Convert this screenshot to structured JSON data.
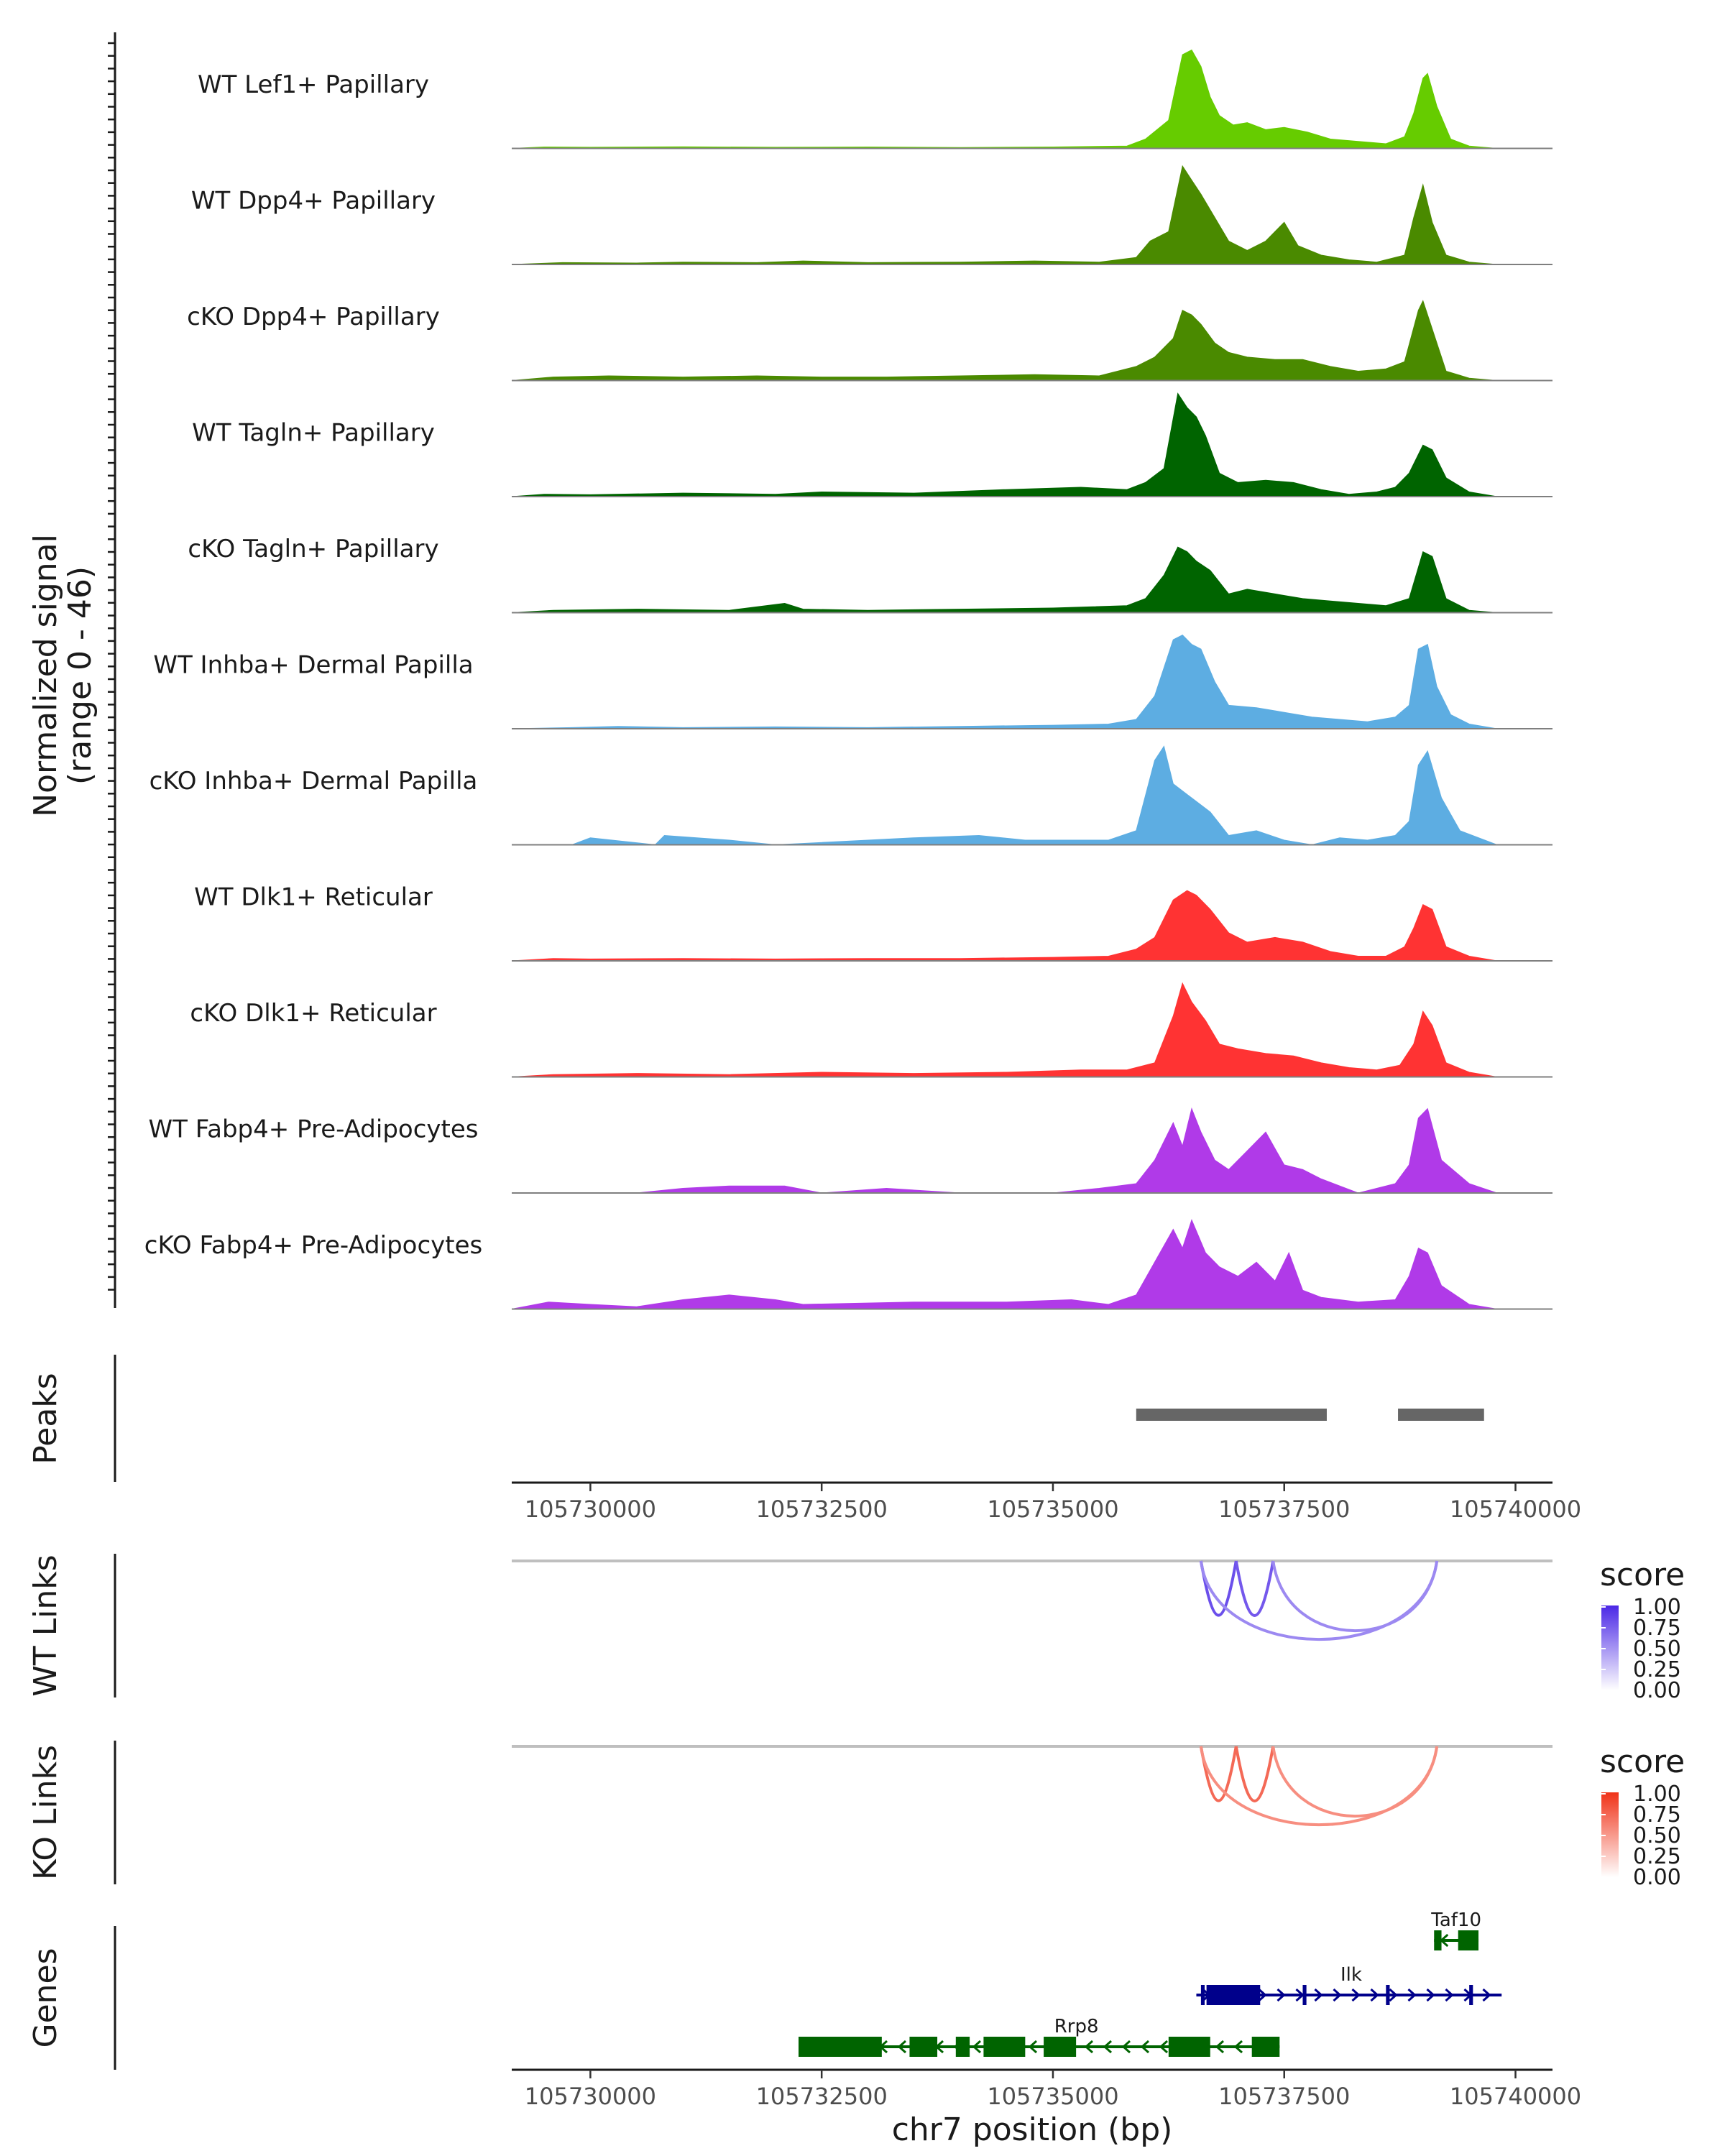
{
  "chart_data": {
    "type": "genome-browser",
    "region": "chr7:105729000-105740000",
    "xlabel": "chr7 position (bp)",
    "xlim": [
      105729150,
      105740400
    ],
    "x_ticks": [
      105730000,
      105732500,
      105735000,
      105737500,
      105740000
    ],
    "x_tick_labels": [
      "105730000",
      "105732500",
      "105735000",
      "105737500",
      "105740000"
    ],
    "coverage": {
      "ylabel": "Normalized signal",
      "ylabel_range": "(range 0 - 46)",
      "ylim": [
        0,
        46
      ],
      "tracks": [
        {
          "label": "WT Lef1+ Papillary",
          "color": "#66cc00",
          "x": [
            105729150,
            105729500,
            105730000,
            105731000,
            105732000,
            105733000,
            105734000,
            105735000,
            105735800,
            105736000,
            105736250,
            105736400,
            105736500,
            105736600,
            105736700,
            105736800,
            105736950,
            105737100,
            105737300,
            105737500,
            105737750,
            105738000,
            105738300,
            105738600,
            105738800,
            105738900,
            105739000,
            105739050,
            105739150,
            105739300,
            105739500,
            105739800
          ],
          "y": [
            0,
            0.6,
            0.5,
            0.7,
            0.5,
            0.6,
            0.4,
            0.6,
            1,
            4,
            12,
            40,
            42,
            35,
            22,
            14,
            10,
            11,
            8,
            9,
            7,
            4,
            3,
            2,
            5,
            15,
            30,
            32,
            18,
            4,
            1,
            0
          ]
        },
        {
          "label": "WT Dpp4+ Papillary",
          "color": "#4a8a00",
          "x": [
            105729150,
            105729700,
            105730500,
            105731000,
            105731800,
            105732300,
            105733000,
            105734000,
            105734800,
            105735500,
            105735900,
            105736050,
            105736250,
            105736400,
            105736500,
            105736600,
            105736750,
            105736900,
            105737100,
            105737300,
            105737500,
            105737650,
            105737900,
            105738200,
            105738500,
            105738800,
            105738900,
            105739000,
            105739100,
            105739250,
            105739500,
            105739800
          ],
          "y": [
            0,
            0.8,
            0.6,
            1,
            0.8,
            1.5,
            0.8,
            1,
            1.5,
            1,
            3,
            10,
            14,
            42,
            36,
            30,
            20,
            10,
            6,
            10,
            18,
            8,
            4,
            2,
            1,
            4,
            20,
            34,
            18,
            4,
            1,
            0
          ]
        },
        {
          "label": "cKO Dpp4+ Papillary",
          "color": "#4a8a00",
          "x": [
            105729150,
            105729600,
            105730200,
            105731000,
            105731800,
            105732500,
            105733200,
            105734000,
            105734800,
            105735500,
            105735900,
            105736100,
            105736300,
            105736400,
            105736500,
            105736600,
            105736750,
            105736900,
            105737100,
            105737400,
            105737700,
            105738000,
            105738300,
            105738600,
            105738800,
            105738950,
            105739000,
            105739100,
            105739250,
            105739500,
            105739800
          ],
          "y": [
            0,
            1.5,
            2,
            1.5,
            2,
            1.5,
            1.5,
            2,
            2.5,
            2,
            6,
            10,
            18,
            30,
            28,
            24,
            16,
            12,
            10,
            9,
            9,
            6,
            4,
            5,
            8,
            30,
            34,
            22,
            4,
            1,
            0
          ]
        },
        {
          "label": "WT Tagln+ Papillary",
          "color": "#006400",
          "x": [
            105729150,
            105729500,
            105730000,
            105731000,
            105732000,
            105732500,
            105733500,
            105734500,
            105735300,
            105735800,
            105736000,
            105736200,
            105736350,
            105736450,
            105736550,
            105736650,
            105736800,
            105737000,
            105737300,
            105737600,
            105737900,
            105738200,
            105738500,
            105738700,
            105738850,
            105739000,
            105739100,
            105739250,
            105739500,
            105739800
          ],
          "y": [
            0,
            1,
            0.8,
            1.5,
            1,
            2,
            1.5,
            3,
            4,
            3,
            6,
            12,
            44,
            38,
            34,
            26,
            10,
            6,
            7,
            6,
            3,
            1,
            2,
            4,
            10,
            22,
            20,
            8,
            2,
            0
          ]
        },
        {
          "label": "cKO Tagln+ Papillary",
          "color": "#006400",
          "x": [
            105729150,
            105729600,
            105730500,
            105731500,
            105732100,
            105732300,
            105733000,
            105734000,
            105735000,
            105735800,
            105736000,
            105736200,
            105736350,
            105736450,
            105736550,
            105736700,
            105736900,
            105737100,
            105737400,
            105737700,
            105738000,
            105738300,
            105738600,
            105738850,
            105739000,
            105739100,
            105739250,
            105739500,
            105739800
          ],
          "y": [
            0,
            1,
            1.5,
            1,
            4,
            1.5,
            1,
            1.5,
            2,
            3,
            6,
            16,
            28,
            26,
            22,
            18,
            8,
            10,
            8,
            6,
            5,
            4,
            3,
            6,
            26,
            24,
            6,
            1,
            0
          ]
        },
        {
          "label": "WT Inhba+ Dermal Papilla",
          "color": "#5dade2",
          "x": [
            105729150,
            105729800,
            105730300,
            105731000,
            105732000,
            105733000,
            105734000,
            105735000,
            105735600,
            105735900,
            105736100,
            105736300,
            105736400,
            105736500,
            105736600,
            105736750,
            105736900,
            105737200,
            105737500,
            105737800,
            105738100,
            105738400,
            105738700,
            105738850,
            105738950,
            105739050,
            105739150,
            105739300,
            105739500,
            105739800
          ],
          "y": [
            0,
            0.5,
            1,
            0.5,
            0.8,
            0.5,
            1,
            1.5,
            2,
            4,
            14,
            38,
            40,
            36,
            34,
            20,
            10,
            9,
            7,
            5,
            4,
            3,
            5,
            10,
            34,
            36,
            18,
            6,
            2,
            0
          ]
        },
        {
          "label": "cKO Inhba+ Dermal Papilla",
          "color": "#5dade2",
          "x": [
            105729150,
            105729800,
            105730000,
            105730700,
            105730800,
            105731500,
            105732000,
            105733000,
            105733500,
            105734200,
            105734700,
            105735600,
            105735900,
            105736100,
            105736200,
            105736300,
            105736500,
            105736700,
            105736900,
            105737200,
            105737500,
            105737800,
            105738100,
            105738400,
            105738700,
            105738850,
            105738950,
            105739050,
            105739200,
            105739400,
            105739800
          ],
          "y": [
            0,
            0,
            3,
            0,
            4,
            2,
            0,
            2,
            3,
            4,
            2,
            2,
            6,
            36,
            42,
            26,
            20,
            14,
            4,
            6,
            2,
            0,
            3,
            2,
            4,
            10,
            34,
            40,
            20,
            6,
            0
          ]
        },
        {
          "label": "WT Dlk1+ Reticular",
          "color": "#ff3333",
          "x": [
            105729150,
            105729600,
            105730000,
            105731000,
            105732000,
            105733000,
            105734000,
            105735000,
            105735600,
            105735900,
            105736100,
            105736300,
            105736450,
            105736550,
            105736700,
            105736900,
            105737100,
            105737400,
            105737700,
            105738000,
            105738300,
            105738600,
            105738800,
            105738900,
            105739000,
            105739100,
            105739250,
            105739500,
            105739800
          ],
          "y": [
            0,
            1,
            0.8,
            1,
            0.8,
            1,
            1,
            1.5,
            2,
            5,
            10,
            26,
            30,
            28,
            22,
            12,
            8,
            10,
            8,
            4,
            2,
            2,
            6,
            14,
            24,
            22,
            6,
            2,
            0
          ]
        },
        {
          "label": "cKO Dlk1+ Reticular",
          "color": "#ff3333",
          "x": [
            105729150,
            105729600,
            105730500,
            105731500,
            105732500,
            105733500,
            105734500,
            105735300,
            105735800,
            105736100,
            105736300,
            105736400,
            105736500,
            105736650,
            105736800,
            105737000,
            105737300,
            105737600,
            105737900,
            105738200,
            105738500,
            105738750,
            105738900,
            105739000,
            105739100,
            105739250,
            105739500,
            105739800
          ],
          "y": [
            0,
            1,
            1.5,
            1,
            2,
            1.5,
            2,
            3,
            3,
            6,
            26,
            40,
            32,
            24,
            14,
            12,
            10,
            9,
            6,
            4,
            3,
            5,
            14,
            28,
            22,
            6,
            2,
            0
          ]
        },
        {
          "label": "WT Fabp4+ Pre-Adipocytes",
          "color": "#b03ae8",
          "x": [
            105729150,
            105730500,
            105731000,
            105731500,
            105732100,
            105732500,
            105733200,
            105734000,
            105735000,
            105735500,
            105735900,
            105736100,
            105736300,
            105736400,
            105736500,
            105736600,
            105736750,
            105736900,
            105737100,
            105737300,
            105737500,
            105737700,
            105737900,
            105738300,
            105738700,
            105738850,
            105738950,
            105739050,
            105739200,
            105739500,
            105739800
          ],
          "y": [
            0,
            0,
            2,
            3,
            3,
            0,
            2,
            0,
            0,
            2,
            4,
            14,
            30,
            20,
            36,
            26,
            14,
            10,
            18,
            26,
            12,
            10,
            6,
            0,
            4,
            12,
            32,
            36,
            14,
            4,
            0
          ]
        },
        {
          "label": "cKO Fabp4+ Pre-Adipocytes",
          "color": "#b03ae8",
          "x": [
            105729150,
            105729550,
            105730000,
            105730500,
            105731000,
            105731500,
            105732000,
            105732300,
            105733500,
            105734500,
            105735200,
            105735600,
            105735900,
            105736100,
            105736300,
            105736400,
            105736500,
            105736650,
            105736800,
            105737000,
            105737200,
            105737400,
            105737550,
            105737700,
            105737900,
            105738300,
            105738700,
            105738850,
            105738950,
            105739050,
            105739200,
            105739500,
            105739800
          ],
          "y": [
            0,
            3,
            2,
            1,
            4,
            6,
            4,
            2,
            3,
            3,
            4,
            2,
            6,
            20,
            34,
            26,
            38,
            24,
            18,
            14,
            20,
            12,
            24,
            8,
            5,
            3,
            4,
            14,
            26,
            24,
            10,
            2,
            0
          ]
        }
      ]
    },
    "peaks": {
      "title": "Peaks",
      "regions": [
        [
          105735900,
          105737960
        ],
        [
          105738730,
          105739660
        ]
      ]
    },
    "wt_links": {
      "title": "WT Links",
      "legend_title": "score",
      "legend_ticks": [
        "1.00",
        "0.75",
        "0.50",
        "0.25",
        "0.00"
      ],
      "color_high": "#4b28e6",
      "color_low": "#ffffff",
      "links": [
        {
          "start": 105736600,
          "end": 105736980,
          "score": 0.8
        },
        {
          "start": 105736980,
          "end": 105737380,
          "score": 0.75
        },
        {
          "start": 105736600,
          "end": 105739150,
          "score": 0.5
        },
        {
          "start": 105737380,
          "end": 105739150,
          "score": 0.5
        }
      ]
    },
    "ko_links": {
      "title": "KO Links",
      "legend_title": "score",
      "legend_ticks": [
        "1.00",
        "0.75",
        "0.50",
        "0.25",
        "0.00"
      ],
      "color_high": "#f03218",
      "color_low": "#ffffff",
      "links": [
        {
          "start": 105736600,
          "end": 105736980,
          "score": 0.7
        },
        {
          "start": 105736980,
          "end": 105737380,
          "score": 0.7
        },
        {
          "start": 105736600,
          "end": 105739150,
          "score": 0.5
        },
        {
          "start": 105737380,
          "end": 105739150,
          "score": 0.5
        }
      ]
    },
    "genes": {
      "title": "Genes",
      "items": [
        {
          "name": "Taf10",
          "strand": "-",
          "start": 105739120,
          "end": 105739600,
          "color": "#006400",
          "exons": [
            [
              105739120,
              105739200
            ],
            [
              105739380,
              105739600
            ]
          ]
        },
        {
          "name": "Ilk",
          "strand": "+",
          "start": 105736550,
          "end": 105739850,
          "color": "#00008b",
          "exons": [
            [
              105736600,
              105736640
            ],
            [
              105736660,
              105737240
            ],
            [
              105737700,
              105737740
            ],
            [
              105738600,
              105738640
            ],
            [
              105739500,
              105739540
            ]
          ]
        },
        {
          "name": "Rrp8",
          "strand": "-",
          "start": 105732250,
          "end": 105737450,
          "color": "#006400",
          "exons": [
            [
              105732250,
              105733150
            ],
            [
              105733450,
              105733750
            ],
            [
              105733950,
              105734100
            ],
            [
              105734250,
              105734700
            ],
            [
              105734900,
              105735250
            ],
            [
              105736250,
              105736700
            ],
            [
              105737150,
              105737450
            ]
          ]
        }
      ]
    }
  }
}
